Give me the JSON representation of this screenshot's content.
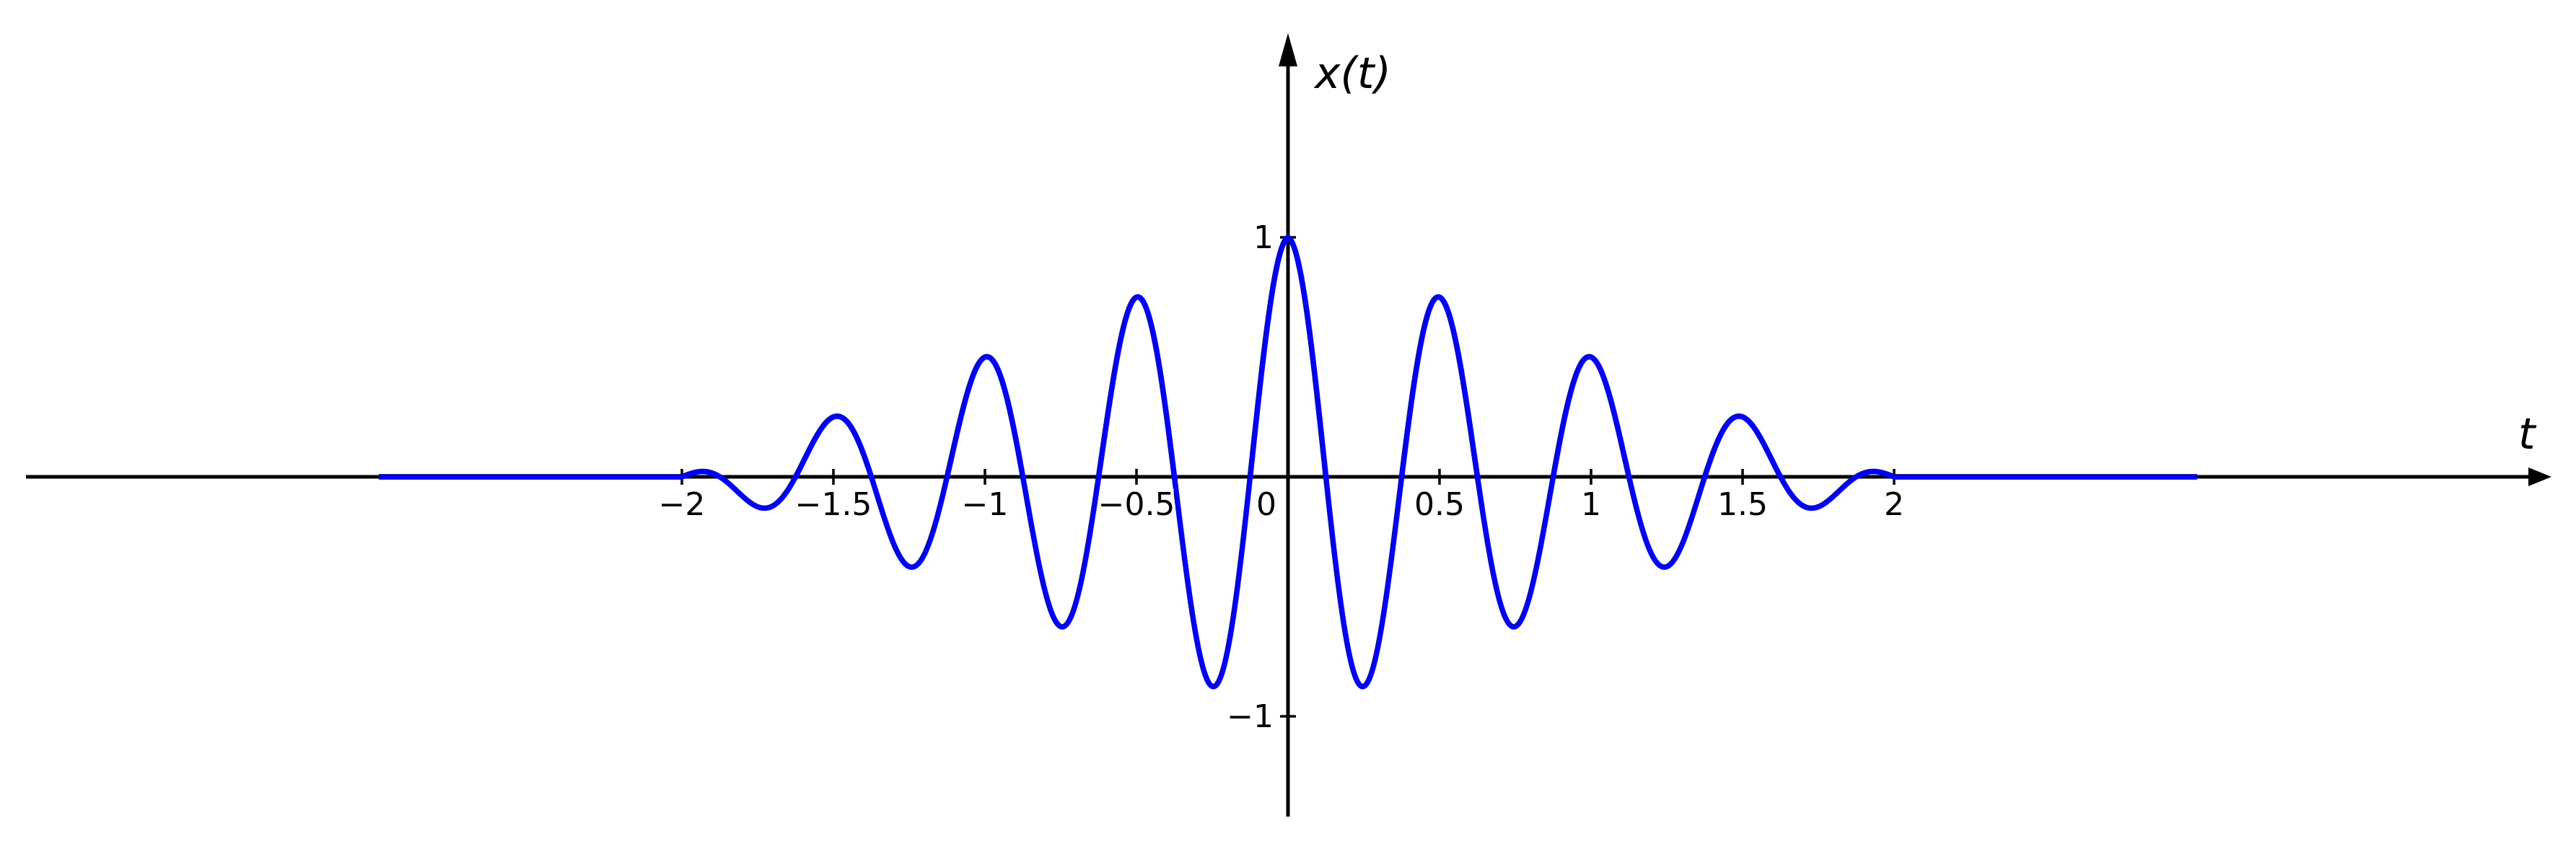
{
  "chart_data": {
    "type": "line",
    "title": "",
    "xlabel": "t",
    "ylabel": "x(t)",
    "xlim": [
      -4.2,
      4.2
    ],
    "ylim": [
      -1.4,
      1.85
    ],
    "x_ticks": [
      -2,
      -1.5,
      -1,
      -0.5,
      0,
      0.5,
      1,
      1.5,
      2
    ],
    "x_tick_labels": [
      "−2",
      "−1.5",
      "−1",
      "−0.5",
      "0",
      "0.5",
      "1",
      "1.5",
      "2"
    ],
    "y_ticks": [
      1,
      -1
    ],
    "y_tick_labels": [
      "1",
      "−1"
    ],
    "grid": false,
    "legend": "none",
    "series": [
      {
        "color": "#0000ff",
        "support": [
          -3,
          3
        ],
        "oscillation_period": 0.5,
        "envelope_zero_at": [
          -2,
          2
        ],
        "x": [
          -3,
          -2,
          -1.5,
          -1.25,
          -1,
          -0.75,
          -0.5,
          -0.25,
          0,
          0.25,
          0.5,
          0.75,
          1,
          1.25,
          1.5,
          2,
          3
        ],
        "y": [
          0,
          0,
          0.25,
          -0.38,
          0.5,
          -0.63,
          0.75,
          -0.88,
          1,
          -0.88,
          0.75,
          -0.63,
          0.5,
          -0.38,
          0.25,
          0,
          0
        ]
      }
    ]
  }
}
